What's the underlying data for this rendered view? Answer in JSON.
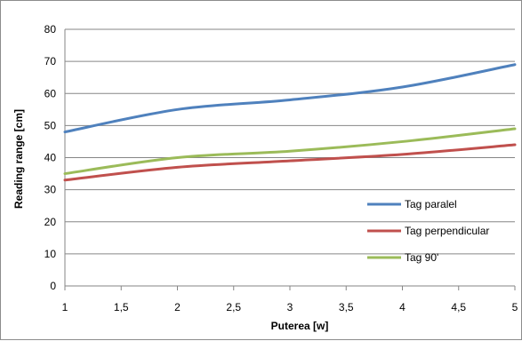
{
  "chart_data": {
    "type": "line",
    "title": "",
    "xlabel": "Puterea [w]",
    "ylabel": "Reading range [cm]",
    "x": [
      1,
      2,
      3,
      4,
      5
    ],
    "x_ticks": [
      "1",
      "1,5",
      "2",
      "2,5",
      "3",
      "3,5",
      "4",
      "4,5",
      "5"
    ],
    "x_tick_values": [
      1,
      1.5,
      2,
      2.5,
      3,
      3.5,
      4,
      4.5,
      5
    ],
    "xlim": [
      1,
      5
    ],
    "ylim": [
      0,
      80
    ],
    "y_ticks": [
      0,
      10,
      20,
      30,
      40,
      50,
      60,
      70,
      80
    ],
    "grid": "horizontal",
    "legend_position": "bottom-right",
    "series": [
      {
        "name": "Tag paralel",
        "color": "#4f81bd",
        "values": [
          48,
          55,
          58,
          62,
          69
        ]
      },
      {
        "name": "Tag perpendicular",
        "color": "#c0504d",
        "values": [
          33,
          37,
          39,
          41,
          44
        ]
      },
      {
        "name": "Tag 90'",
        "color": "#9bbb59",
        "values": [
          35,
          40,
          42,
          45,
          49
        ]
      }
    ]
  }
}
